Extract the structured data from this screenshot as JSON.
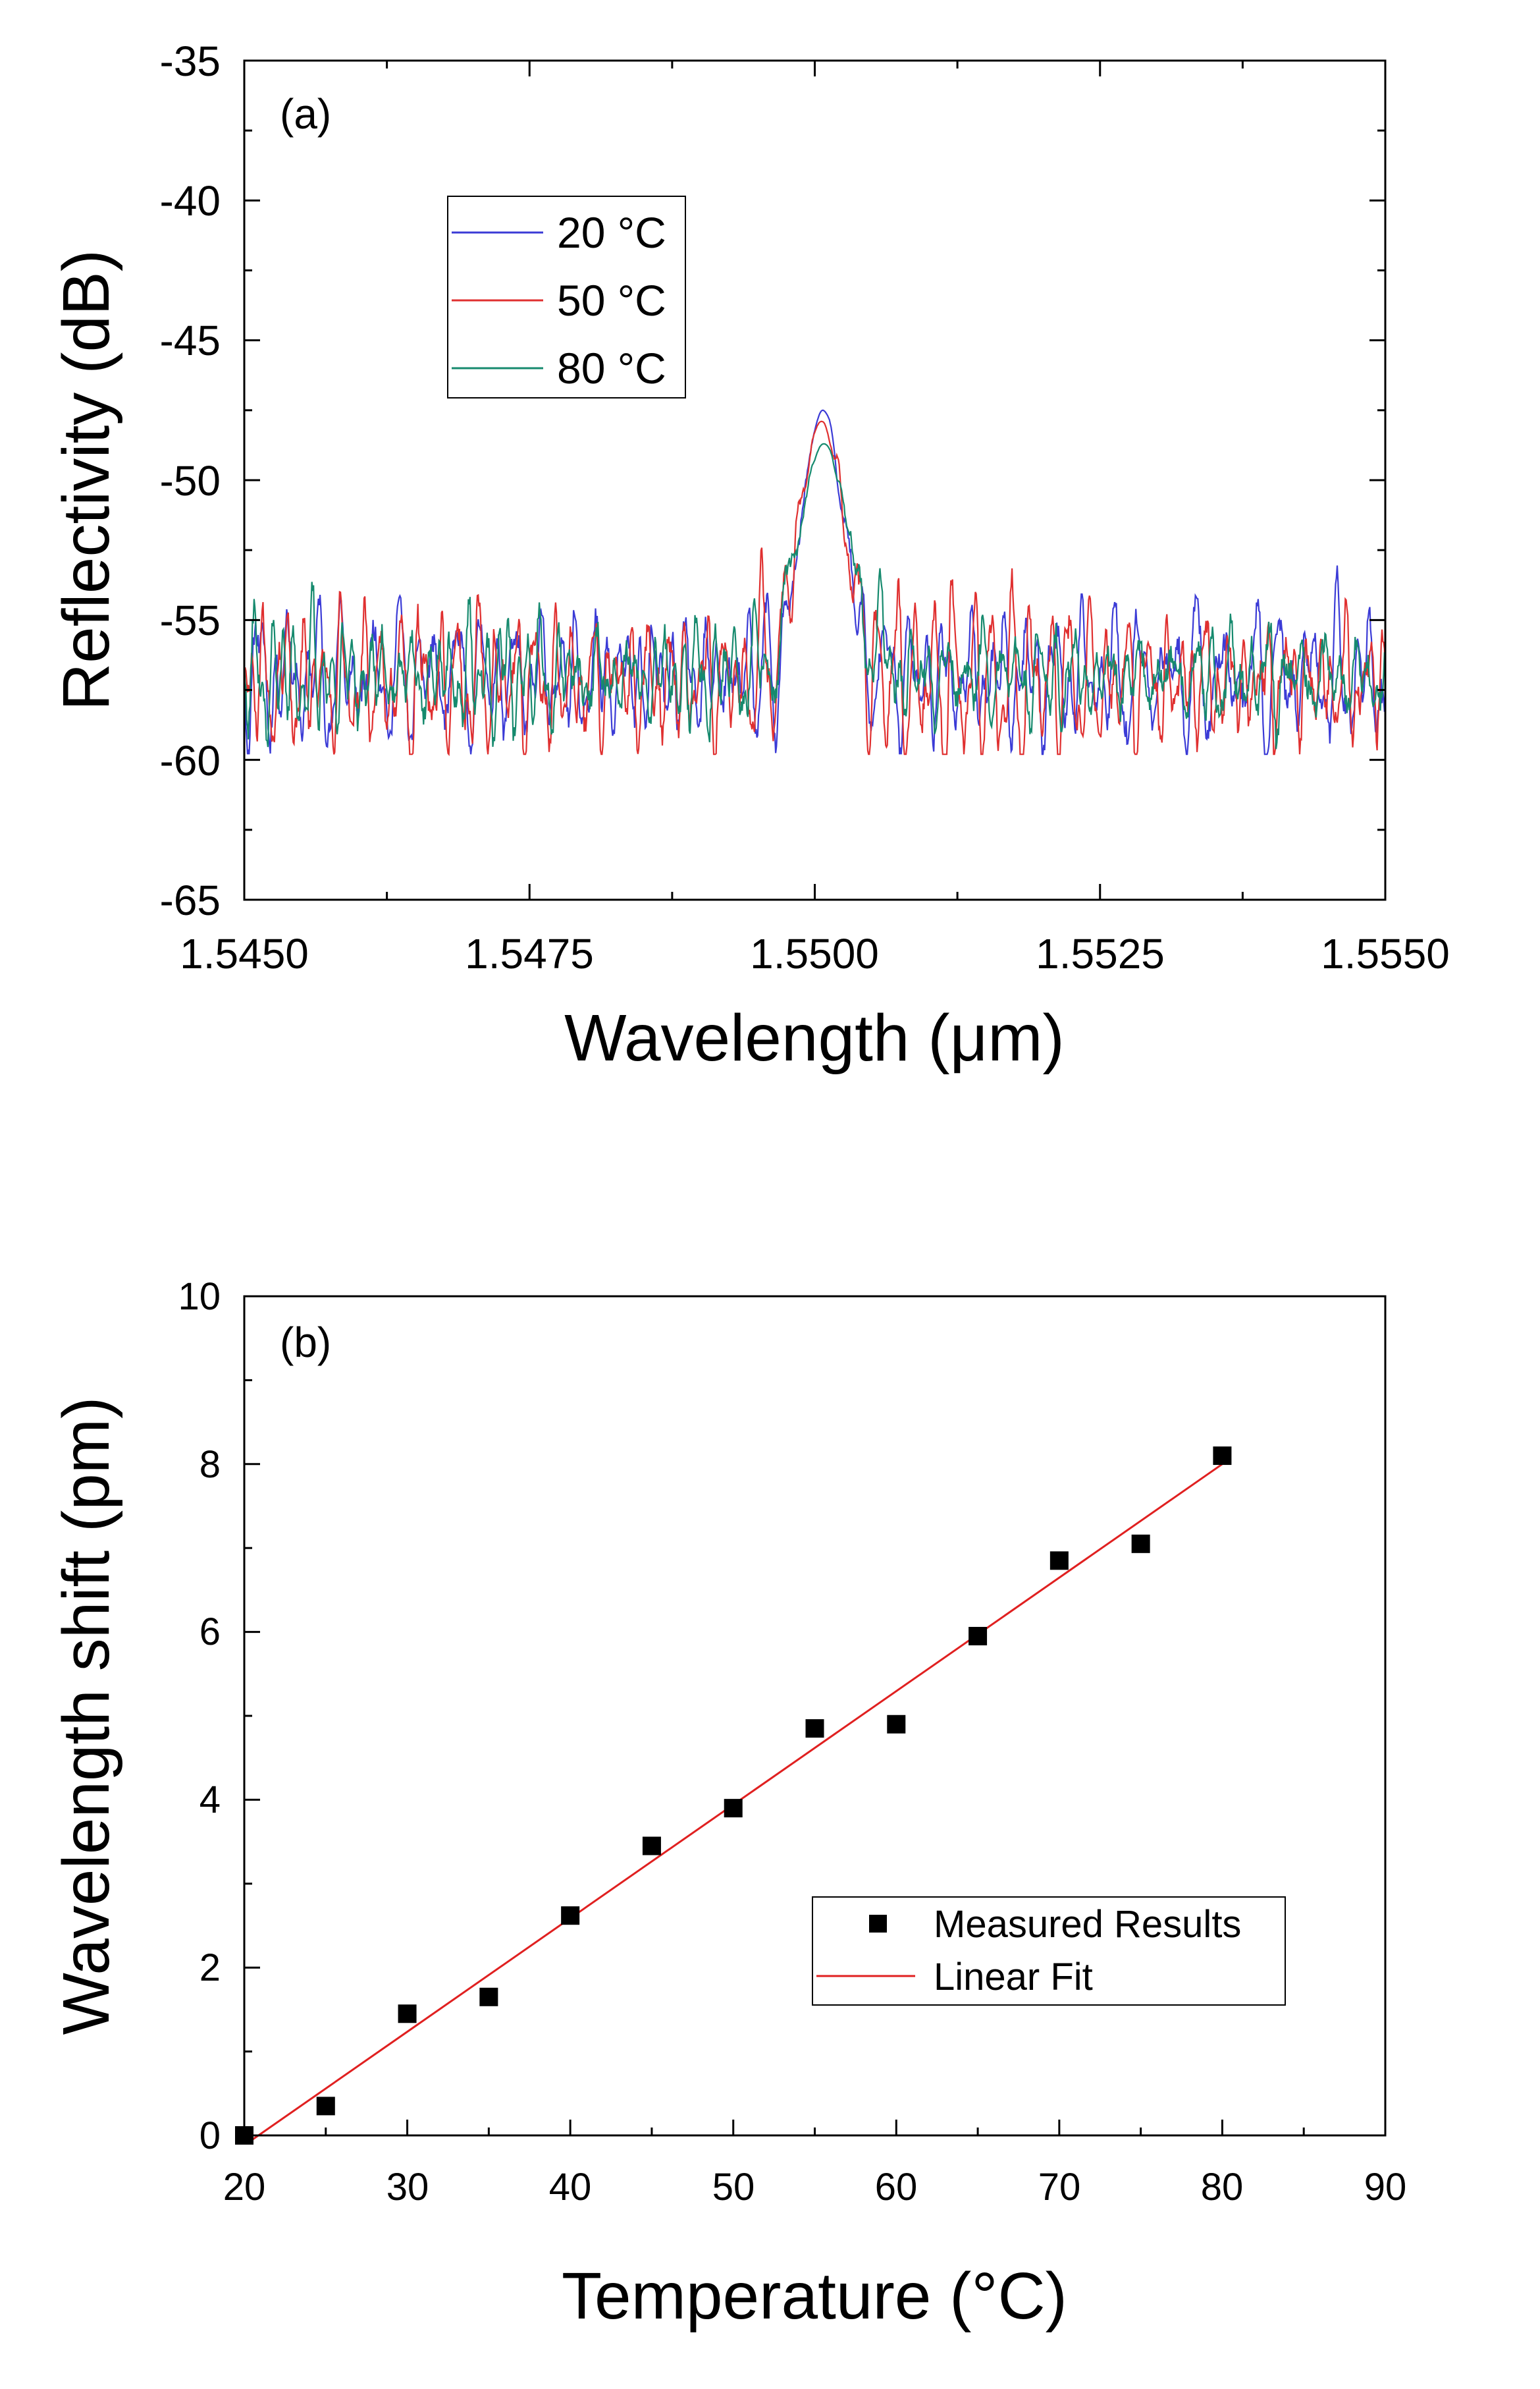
{
  "chart_data": [
    {
      "type": "line",
      "panel_label": "(a)",
      "xlabel": "Wavelength (μm)",
      "ylabel": "Reflectivity (dB)",
      "xlim": [
        1.545,
        1.555
      ],
      "ylim": [
        -65,
        -35
      ],
      "xticks": [
        "1.5450",
        "1.5475",
        "1.5500",
        "1.5525",
        "1.5550"
      ],
      "yticks": [
        "-35",
        "-40",
        "-45",
        "-50",
        "-55",
        "-60",
        "-65"
      ],
      "legend_position": "upper-left",
      "series": [
        {
          "name": "20 °C",
          "color": "#3b3bd6",
          "baseline": -57.0,
          "peak_center": 1.55007,
          "peak_value": -47.5,
          "peak_width": 0.00018,
          "seed": 11
        },
        {
          "name": "50 °C",
          "color": "#e03030",
          "baseline": -57.2,
          "peak_center": 1.55006,
          "peak_value": -47.9,
          "peak_width": 0.0002,
          "seed": 23
        },
        {
          "name": "80 °C",
          "color": "#168a6e",
          "baseline": -57.0,
          "peak_center": 1.55008,
          "peak_value": -48.7,
          "peak_width": 0.00022,
          "seed": 37
        }
      ]
    },
    {
      "type": "scatter",
      "panel_label": "(b)",
      "xlabel": "Temperature (°C)",
      "ylabel": "Wavelength shift (pm)",
      "xlim": [
        20,
        90
      ],
      "ylim": [
        0,
        10
      ],
      "xticks": [
        "20",
        "30",
        "40",
        "50",
        "60",
        "70",
        "80",
        "90"
      ],
      "yticks": [
        "0",
        "2",
        "4",
        "6",
        "8",
        "10"
      ],
      "legend_position": "lower-right",
      "series": [
        {
          "name": "Measured Results",
          "marker": "square",
          "color": "#000000",
          "x": [
            20,
            25,
            30,
            35,
            40,
            45,
            50,
            55,
            60,
            65,
            70,
            75,
            80
          ],
          "y": [
            0.0,
            0.35,
            1.45,
            1.65,
            2.62,
            3.45,
            3.9,
            4.85,
            4.9,
            5.95,
            6.85,
            7.05,
            8.1
          ]
        },
        {
          "name": "Linear Fit",
          "type": "line",
          "color": "#e02020",
          "x": [
            20.5,
            80
          ],
          "y": [
            -0.05,
            8.0
          ]
        }
      ]
    }
  ]
}
